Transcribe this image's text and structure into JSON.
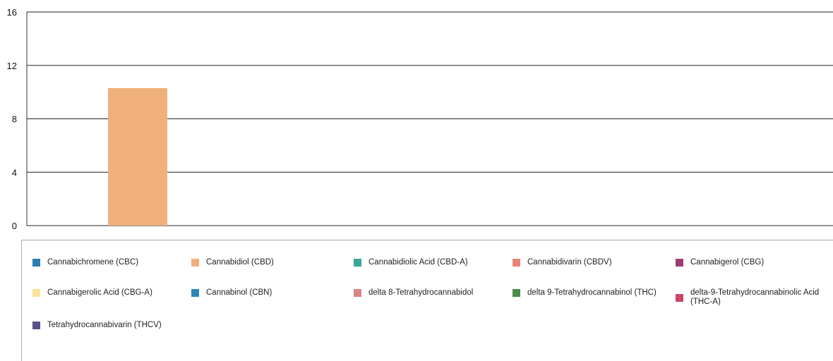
{
  "chart_data": {
    "type": "bar",
    "title": "",
    "xlabel": "",
    "ylabel": "",
    "ylim": [
      0,
      16
    ],
    "yticks": [
      0,
      4,
      8,
      12,
      16
    ],
    "grid": true,
    "legend_placement": "bottom",
    "series": [
      {
        "name": "Cannabichromene (CBC)",
        "color": "#2b7fb0",
        "value": 0
      },
      {
        "name": "Cannabidiol (CBD)",
        "color": "#f0b07c",
        "value": 10.3
      },
      {
        "name": "Cannabidiolic Acid (CBD-A)",
        "color": "#3aa39a",
        "value": 0
      },
      {
        "name": "Cannabidivarin (CBDV)",
        "color": "#e8837a",
        "value": 0
      },
      {
        "name": "Cannabigerol (CBG)",
        "color": "#9b3d70",
        "value": 0
      },
      {
        "name": "Cannabigerolic Acid (CBG-A)",
        "color": "#fbe39a",
        "value": 0
      },
      {
        "name": "Cannabinol (CBN)",
        "color": "#2a86b8",
        "value": 0
      },
      {
        "name": "delta 8-Tetrahydrocannabidol",
        "color": "#d98585",
        "value": 0
      },
      {
        "name": "delta 9-Tetrahydrocannabinol (THC)",
        "color": "#4e8a4a",
        "value": 0
      },
      {
        "name": "delta-9-Tetrahydrocannabinolic Acid (THC-A)",
        "color": "#c94868",
        "value": 0
      },
      {
        "name": "Tetrahydrocannabivarin (THCV)",
        "color": "#5b4f8a",
        "value": 0
      }
    ]
  }
}
